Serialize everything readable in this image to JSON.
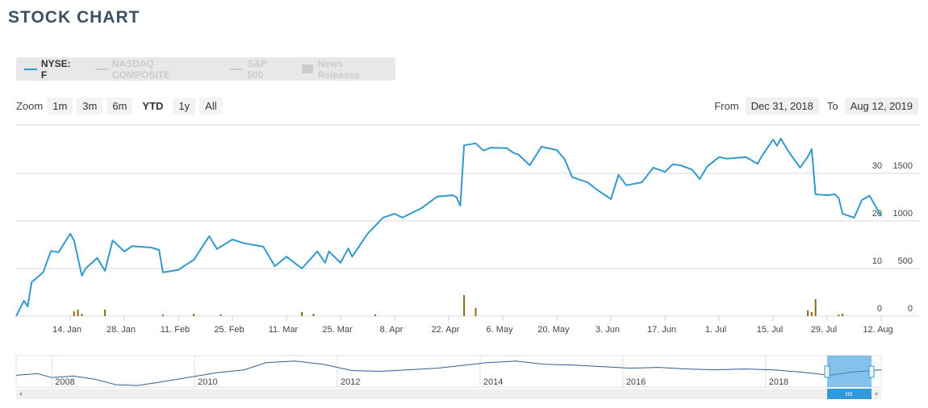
{
  "header": {
    "title": "STOCK CHART"
  },
  "toolbar": {
    "legend": [
      "NASDAQ COMPOSITE",
      "S&P 500",
      "News Releases"
    ],
    "zoom_label": "Zoom",
    "zoom": [
      "1m",
      "3m",
      "6m",
      "YTD",
      "1y",
      "All"
    ],
    "active_zoom": 3,
    "from_label": "From",
    "from": "Dec 31, 2018",
    "to_label": "To",
    "to": "Aug 12, 2019"
  },
  "chart_data": {
    "type": "line",
    "grid": true,
    "xlim": [
      "2018-12-31",
      "2019-08-12"
    ],
    "xticks": [
      {
        "value": "2019-01-14",
        "label": "14. Jan"
      },
      {
        "value": "2019-01-28",
        "label": "28. Jan"
      },
      {
        "value": "2019-02-11",
        "label": "11. Feb"
      },
      {
        "value": "2019-02-25",
        "label": "25. Feb"
      },
      {
        "value": "2019-03-11",
        "label": "11. Mar"
      },
      {
        "value": "2019-03-25",
        "label": "25. Mar"
      },
      {
        "value": "2019-04-08",
        "label": "8. Apr"
      },
      {
        "value": "2019-04-22",
        "label": "22. Apr"
      },
      {
        "value": "2019-05-06",
        "label": "6. May"
      },
      {
        "value": "2019-05-20",
        "label": "20. May"
      },
      {
        "value": "2019-06-03",
        "label": "3. Jun"
      },
      {
        "value": "2019-06-17",
        "label": "17. Jun"
      },
      {
        "value": "2019-07-01",
        "label": "1. Jul"
      },
      {
        "value": "2019-07-15",
        "label": "15. Jul"
      },
      {
        "value": "2019-07-29",
        "label": "29. Jul"
      },
      {
        "value": "2019-08-12",
        "label": "12. Aug"
      }
    ],
    "ylim": [
      0,
      40
    ],
    "yticks": [
      0,
      10,
      20,
      30
    ],
    "y2lim": [
      0,
      2000
    ],
    "y2ticks": [
      0,
      500,
      1000,
      1500
    ],
    "series": [
      {
        "name": "NYSE: F",
        "color": "#3399cc",
        "x": [
          "2018-12-31",
          "2019-01-02",
          "2019-01-03",
          "2019-01-04",
          "2019-01-07",
          "2019-01-09",
          "2019-01-11",
          "2019-01-14",
          "2019-01-15",
          "2019-01-17",
          "2019-01-18",
          "2019-01-21",
          "2019-01-23",
          "2019-01-25",
          "2019-01-28",
          "2019-01-30",
          "2019-02-04",
          "2019-02-06",
          "2019-02-07",
          "2019-02-11",
          "2019-02-13",
          "2019-02-15",
          "2019-02-19",
          "2019-02-21",
          "2019-02-25",
          "2019-02-28",
          "2019-03-05",
          "2019-03-08",
          "2019-03-11",
          "2019-03-15",
          "2019-03-19",
          "2019-03-21",
          "2019-03-22",
          "2019-03-25",
          "2019-03-27",
          "2019-03-28",
          "2019-04-01",
          "2019-04-05",
          "2019-04-08",
          "2019-04-10",
          "2019-04-15",
          "2019-04-19",
          "2019-04-23",
          "2019-04-24",
          "2019-04-25",
          "2019-04-26",
          "2019-04-29",
          "2019-05-01",
          "2019-05-03",
          "2019-05-07",
          "2019-05-09",
          "2019-05-10",
          "2019-05-13",
          "2019-05-16",
          "2019-05-20",
          "2019-05-22",
          "2019-05-24",
          "2019-05-28",
          "2019-05-30",
          "2019-06-03",
          "2019-06-05",
          "2019-06-07",
          "2019-06-11",
          "2019-06-14",
          "2019-06-17",
          "2019-06-19",
          "2019-06-21",
          "2019-06-24",
          "2019-06-26",
          "2019-06-28",
          "2019-07-01",
          "2019-07-03",
          "2019-07-08",
          "2019-07-11",
          "2019-07-12",
          "2019-07-15",
          "2019-07-16",
          "2019-07-17",
          "2019-07-19",
          "2019-07-22",
          "2019-07-24",
          "2019-07-25",
          "2019-07-26",
          "2019-07-29",
          "2019-07-31",
          "2019-08-01",
          "2019-08-02",
          "2019-08-05",
          "2019-08-07",
          "2019-08-09",
          "2019-08-12"
        ],
        "values": [
          0,
          3.2,
          2.0,
          7.1,
          9.2,
          13.7,
          13.4,
          17.3,
          15.9,
          8.5,
          10,
          12.2,
          9.5,
          15.9,
          13.6,
          14.7,
          14.4,
          13.9,
          9.2,
          9.7,
          10.8,
          11.8,
          16.8,
          14.1,
          16.1,
          15.3,
          14.6,
          10.5,
          12.5,
          10,
          13.6,
          11.2,
          13.6,
          11.2,
          14.2,
          12.5,
          17.3,
          20.7,
          21.5,
          20.7,
          22.7,
          25.1,
          25.4,
          25.0,
          23.2,
          35.9,
          36.3,
          34.8,
          35.4,
          35.3,
          34.2,
          34,
          31.7,
          35.6,
          34.9,
          33.0,
          29.2,
          28.1,
          26.8,
          24.6,
          29.7,
          27.5,
          28.1,
          31.2,
          30.3,
          31.9,
          31.7,
          30.8,
          28.8,
          31.5,
          33.4,
          33.1,
          33.4,
          32.0,
          33.5,
          37.1,
          35.8,
          37.3,
          34.6,
          31.2,
          33.5,
          35.1,
          25.6,
          25.4,
          25.6,
          24.8,
          21.5,
          20.7,
          24.4,
          25.3,
          21
        ]
      }
    ],
    "volume": {
      "color": "#8a6a14",
      "axis": "y2",
      "x": [
        "2019-01-15",
        "2019-01-16",
        "2019-01-17",
        "2019-01-23",
        "2019-02-07",
        "2019-02-15",
        "2019-02-22",
        "2019-03-15",
        "2019-03-18",
        "2019-04-03",
        "2019-04-26",
        "2019-04-29",
        "2019-07-24",
        "2019-07-25",
        "2019-07-26",
        "2019-08-01",
        "2019-08-02"
      ],
      "values": [
        50,
        68,
        25,
        68,
        17,
        25,
        17,
        42,
        25,
        17,
        220,
        85,
        59,
        42,
        178,
        17,
        25
      ]
    }
  },
  "navigator": {
    "type": "line",
    "color": "#335f8f",
    "xlim": [
      2007.5,
      2019.62
    ],
    "ylim": [
      0,
      40
    ],
    "xticks": [
      2008,
      2010,
      2012,
      2014,
      2016,
      2018
    ],
    "x": [
      2007.5,
      2007.8,
      2008.0,
      2008.3,
      2008.6,
      2008.9,
      2009.2,
      2009.5,
      2009.9,
      2010.3,
      2010.7,
      2011.0,
      2011.4,
      2011.8,
      2012.2,
      2012.6,
      2013.0,
      2013.4,
      2013.8,
      2014.1,
      2014.5,
      2014.9,
      2015.3,
      2015.7,
      2016.1,
      2016.5,
      2016.9,
      2017.3,
      2017.7,
      2018.1,
      2018.5,
      2018.9,
      2019.2,
      2019.62
    ],
    "values": [
      15,
      17,
      12,
      14,
      10,
      3,
      2,
      6,
      12,
      18,
      22,
      31,
      33,
      29,
      21,
      20,
      22,
      24,
      28,
      31,
      33,
      29,
      28,
      26,
      24,
      25,
      23,
      22,
      23,
      22,
      19,
      15,
      19,
      22
    ]
  }
}
